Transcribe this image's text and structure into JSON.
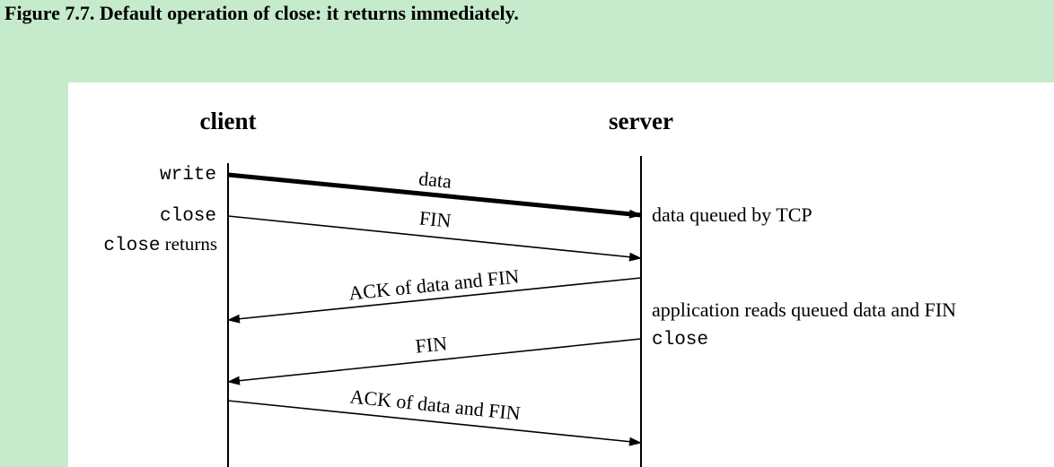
{
  "caption": "Figure 7.7. Default operation of close: it returns immediately.",
  "diagram": {
    "client_label": "client",
    "server_label": "server",
    "client_events": {
      "write": "write",
      "close": "close",
      "close_returns_mono": "close",
      "close_returns_text": "returns"
    },
    "server_events": {
      "data_queued": "data queued by TCP",
      "app_reads": "application reads queued data and FIN",
      "close": "close"
    },
    "messages": {
      "data": "data",
      "fin1": "FIN",
      "ack1": "ACK of data and FIN",
      "fin2": "FIN",
      "ack2": "ACK of data and FIN"
    }
  }
}
